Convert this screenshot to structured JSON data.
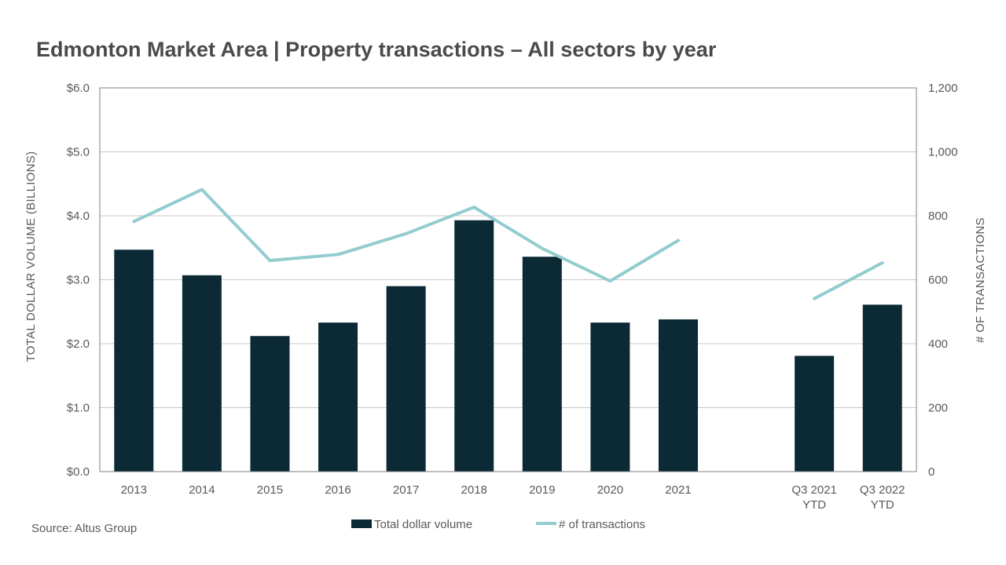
{
  "title": "Edmonton Market Area | Property transactions – All sectors by year",
  "source": "Source:  Altus Group",
  "colors": {
    "bar": "#0b2a36",
    "line": "#93cccf",
    "grid": "#c8c8c8",
    "frame": "#7f7f7f"
  },
  "chart_data": {
    "type": "bar",
    "title": "Edmonton Market Area | Property transactions – All sectors by year",
    "categories": [
      [
        "2013"
      ],
      [
        "2014"
      ],
      [
        "2015"
      ],
      [
        "2016"
      ],
      [
        "2017"
      ],
      [
        "2018"
      ],
      [
        "2019"
      ],
      [
        "2020"
      ],
      [
        "2021"
      ],
      [
        ""
      ],
      [
        "Q3 2021",
        "YTD"
      ],
      [
        "Q3 2022",
        "YTD"
      ]
    ],
    "series": [
      {
        "name": "Total dollar volume",
        "type": "bar",
        "axis": "left",
        "values": [
          3.47,
          3.07,
          2.12,
          2.33,
          2.9,
          3.93,
          3.36,
          2.33,
          2.38,
          null,
          1.81,
          2.61
        ]
      },
      {
        "name": "# of transactions",
        "type": "line",
        "axis": "right",
        "values": [
          782,
          882,
          660,
          679,
          744,
          827,
          698,
          596,
          723,
          null,
          541,
          653
        ]
      }
    ],
    "y_left": {
      "label": "TOTAL DOLLAR VOLUME (BILLIONS)",
      "ylim": [
        0,
        6
      ],
      "ticks": [
        0,
        1,
        2,
        3,
        4,
        5,
        6
      ],
      "tick_labels": [
        "$0.0",
        "$1.0",
        "$2.0",
        "$3.0",
        "$4.0",
        "$5.0",
        "$6.0"
      ]
    },
    "y_right": {
      "label": "# OF TRANSACTIONS",
      "ylim": [
        0,
        1200
      ],
      "ticks": [
        0,
        200,
        400,
        600,
        800,
        1000,
        1200
      ],
      "tick_labels": [
        "0",
        "200",
        "400",
        "600",
        "800",
        "1,000",
        "1,200"
      ]
    },
    "grid": true,
    "legend_position": "bottom"
  }
}
